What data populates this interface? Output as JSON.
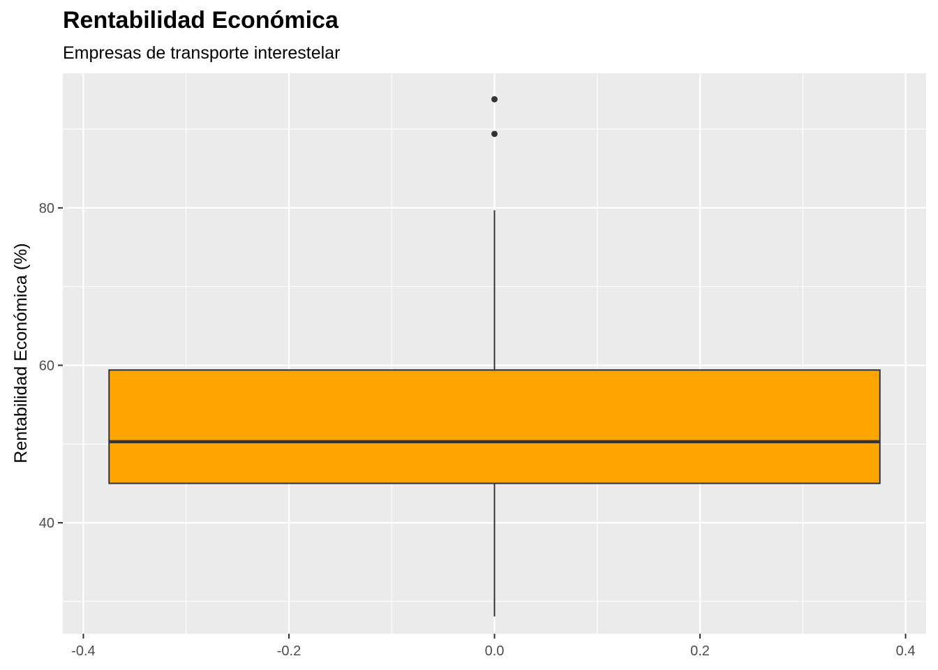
{
  "chart_data": {
    "type": "boxplot",
    "title": "Rentabilidad Económica",
    "subtitle": "Empresas de transporte interestelar",
    "xlabel": "",
    "ylabel": "Rentabilidad Económica (%)",
    "xlim": [
      -0.42,
      0.42
    ],
    "ylim": [
      25.9,
      97.1
    ],
    "x_ticks": [
      -0.4,
      -0.2,
      0.0,
      0.2,
      0.4
    ],
    "x_tick_labels": [
      "-0.4",
      "-0.2",
      "0.0",
      "0.2",
      "0.4"
    ],
    "y_ticks": [
      40,
      60,
      80
    ],
    "y_tick_labels": [
      "40",
      "60",
      "80"
    ],
    "grid": true,
    "box": {
      "x_center": 0.0,
      "x_left": -0.375,
      "x_right": 0.375,
      "whisker_low": 28.1,
      "q1": 45.0,
      "median": 50.3,
      "q3": 59.4,
      "whisker_high": 79.7,
      "outliers": [
        89.4,
        93.8
      ],
      "fill_color": "#FFA500",
      "line_color": "#333333"
    },
    "panel_color": "#EBEBEB",
    "grid_color": "#FFFFFF"
  }
}
